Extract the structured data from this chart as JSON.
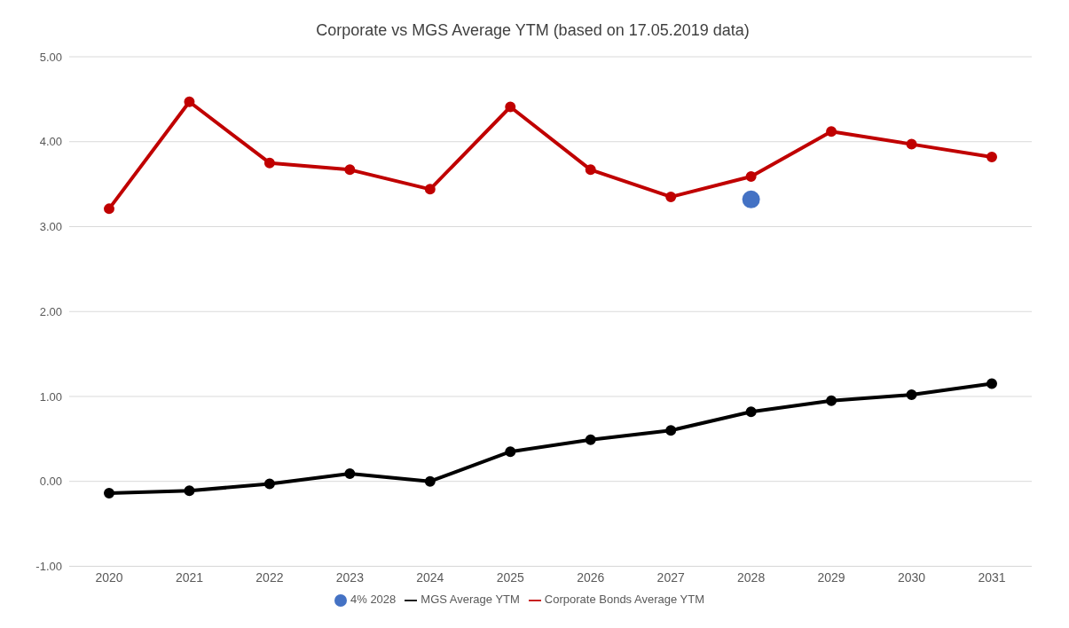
{
  "chart_data": {
    "type": "line",
    "title": "Corporate vs MGS Average YTM (based on 17.05.2019 data)",
    "categories": [
      "2020",
      "2021",
      "2022",
      "2023",
      "2024",
      "2025",
      "2026",
      "2027",
      "2028",
      "2029",
      "2030",
      "2031"
    ],
    "series": [
      {
        "name": "4% 2028",
        "type": "scatter",
        "color": "#4472c4",
        "values": [
          null,
          null,
          null,
          null,
          null,
          null,
          null,
          null,
          3.32,
          null,
          null,
          null
        ]
      },
      {
        "name": "MGS Average YTM",
        "color": "#000000",
        "values": [
          -0.14,
          -0.11,
          -0.03,
          0.09,
          0.0,
          0.35,
          0.49,
          0.6,
          0.82,
          0.95,
          1.02,
          1.15
        ]
      },
      {
        "name": "Corporate Bonds Average YTM",
        "color": "#c00000",
        "values": [
          3.21,
          4.47,
          3.75,
          3.67,
          3.44,
          4.41,
          3.67,
          3.35,
          3.59,
          4.12,
          3.97,
          3.82
        ]
      }
    ],
    "ylim": [
      -1,
      5
    ],
    "yticks": [
      {
        "value": -1,
        "label": "-1.00"
      },
      {
        "value": 0,
        "label": "0.00"
      },
      {
        "value": 1,
        "label": "1.00"
      },
      {
        "value": 2,
        "label": "2.00"
      },
      {
        "value": 3,
        "label": "3.00"
      },
      {
        "value": 4,
        "label": "4.00"
      },
      {
        "value": 5,
        "label": "5.00"
      }
    ],
    "grid": "y",
    "legend": "bottom",
    "marker": "circle",
    "line_style": "solid"
  }
}
